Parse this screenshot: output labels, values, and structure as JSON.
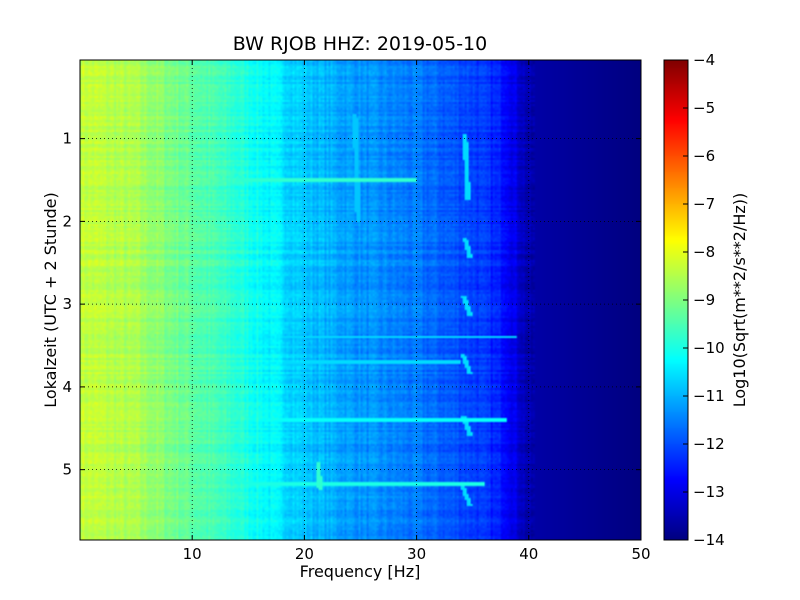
{
  "chart_data": {
    "type": "heatmap",
    "title": "BW RJOB HHZ: 2019-05-10",
    "xlabel": "Frequency [Hz]",
    "ylabel": "Lokalzeit (UTC + 2 Stunde)",
    "xlim": [
      0,
      50
    ],
    "ylim": [
      5.85,
      0.05
    ],
    "x_ticks": [
      10,
      20,
      30,
      40,
      50
    ],
    "y_ticks": [
      1,
      2,
      3,
      4,
      5
    ],
    "grid": true,
    "colormap": "jet",
    "colorbar": {
      "label": "Log10(Sqrt(m**2/s**2/Hz))",
      "range": [
        -14,
        -4
      ],
      "ticks": [
        -14,
        -13,
        -12,
        -11,
        -10,
        -9,
        -8,
        -7,
        -6,
        -5,
        -4
      ]
    },
    "spectrum_profile": [
      {
        "freq": 0,
        "value": -8.3
      },
      {
        "freq": 5,
        "value": -8.6
      },
      {
        "freq": 10,
        "value": -9.3
      },
      {
        "freq": 15,
        "value": -10.0
      },
      {
        "freq": 20,
        "value": -10.8
      },
      {
        "freq": 25,
        "value": -11.3
      },
      {
        "freq": 30,
        "value": -11.6
      },
      {
        "freq": 35,
        "value": -12.1
      },
      {
        "freq": 38,
        "value": -12.6
      },
      {
        "freq": 40,
        "value": -13.6
      },
      {
        "freq": 50,
        "value": -14.0
      }
    ],
    "features": [
      {
        "kind": "line",
        "freq": [
          34.3,
          34.6
        ],
        "time": [
          0.95,
          1.75
        ],
        "value": -10.6
      },
      {
        "kind": "line",
        "freq": [
          34.3,
          34.8
        ],
        "time": [
          2.2,
          2.45
        ],
        "value": -10.6
      },
      {
        "kind": "line",
        "freq": [
          34.2,
          34.8
        ],
        "time": [
          2.9,
          3.15
        ],
        "value": -10.6
      },
      {
        "kind": "line",
        "freq": [
          34.1,
          34.8
        ],
        "time": [
          3.6,
          3.85
        ],
        "value": -10.6
      },
      {
        "kind": "line",
        "freq": [
          34.2,
          34.8
        ],
        "time": [
          4.35,
          4.6
        ],
        "value": -10.6
      },
      {
        "kind": "line",
        "freq": [
          34.1,
          34.8
        ],
        "time": [
          5.2,
          5.45
        ],
        "value": -10.6
      },
      {
        "kind": "line",
        "freq": [
          24.5,
          24.8
        ],
        "time": [
          0.7,
          2.0
        ],
        "value": -10.8
      },
      {
        "kind": "line",
        "freq": [
          21.2,
          21.4
        ],
        "time": [
          4.9,
          5.25
        ],
        "value": -9.8
      },
      {
        "kind": "band",
        "time": 1.5,
        "freq": [
          0,
          30
        ],
        "value": -9.8
      },
      {
        "kind": "band",
        "time": 4.4,
        "freq": [
          0,
          38
        ],
        "value": -10.2
      },
      {
        "kind": "band",
        "time": 5.18,
        "freq": [
          0,
          36
        ],
        "value": -10.0
      },
      {
        "kind": "band",
        "time": 3.4,
        "freq": [
          0,
          39
        ],
        "value": -10.6
      },
      {
        "kind": "band",
        "time": 3.7,
        "freq": [
          0,
          34
        ],
        "value": -10.6
      }
    ]
  }
}
